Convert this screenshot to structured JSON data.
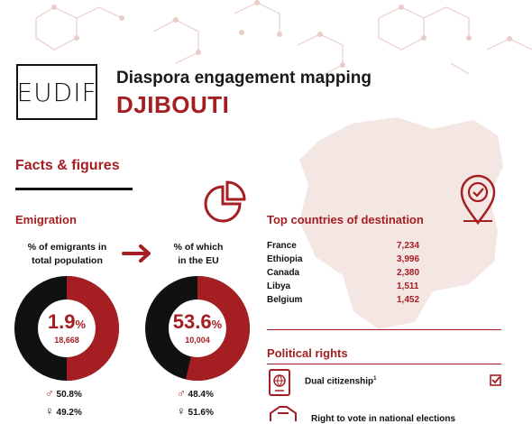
{
  "header": {
    "logo_text": "EUDIF",
    "subtitle": "Diaspora engagement mapping",
    "country": "DJIBOUTI"
  },
  "facts_title": "Facts & figures",
  "emigration": {
    "title": "Emigration",
    "total": {
      "label_line1": "% of emigrants in",
      "label_line2": "total population",
      "percent": "1.9",
      "percent_sign": "%",
      "count": "18,668",
      "share": 0.019,
      "male": "50.8%",
      "female": "49.2%"
    },
    "eu": {
      "label_line1": "% of which",
      "label_line2": "in the EU",
      "percent": "53.6",
      "percent_sign": "%",
      "count": "10,004",
      "share": 0.536,
      "male": "48.4%",
      "female": "51.6%"
    }
  },
  "destinations": {
    "title": "Top countries of destination",
    "rows": [
      {
        "country": "France",
        "value": "7,234"
      },
      {
        "country": "Ethiopia",
        "value": "3,996"
      },
      {
        "country": "Canada",
        "value": "2,380"
      },
      {
        "country": "Libya",
        "value": "1,511"
      },
      {
        "country": "Belgium",
        "value": "1,452"
      }
    ]
  },
  "political": {
    "title": "Political rights",
    "dual": "Dual citizenship",
    "dual_mark": "1",
    "vote": "Right to vote in national elections"
  },
  "colors": {
    "accent": "#a51e22",
    "dark": "#111111",
    "map": "#f3e6e3"
  }
}
